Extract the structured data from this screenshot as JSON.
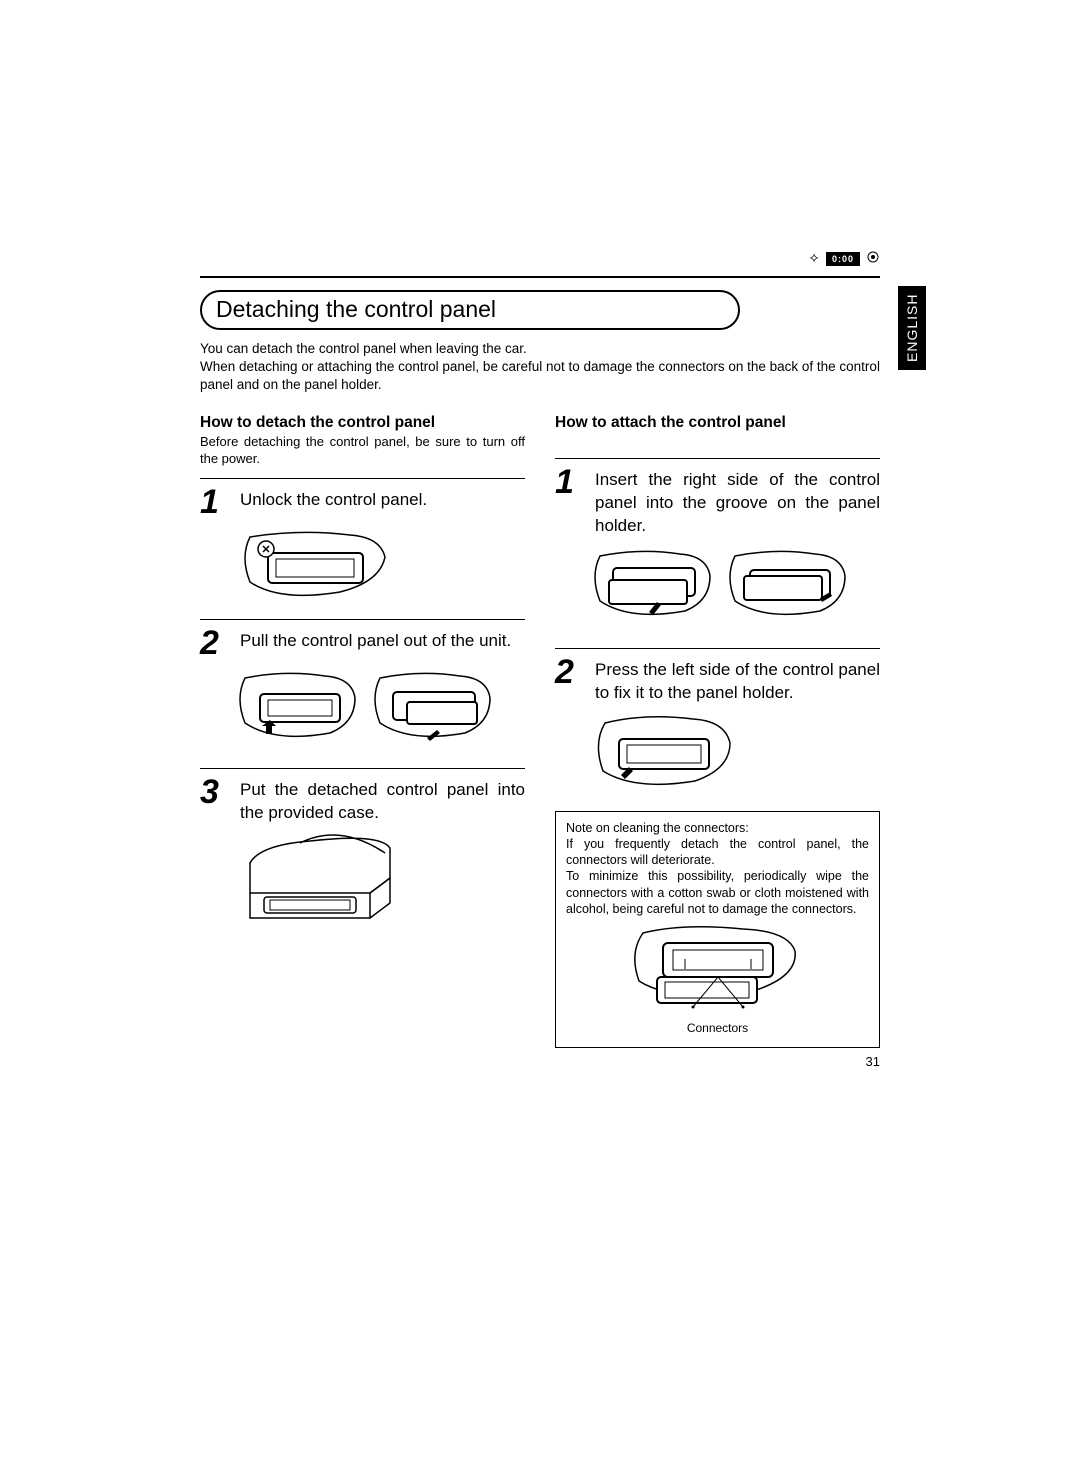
{
  "header": {
    "icon_box_text": "0:00"
  },
  "language_tab": "ENGLISH",
  "section_title": "Detaching the control panel",
  "intro_text": "You can detach the control panel when leaving the car.\nWhen detaching or attaching the control panel, be careful not to damage the connectors on the back of the control panel and on the panel holder.",
  "left": {
    "heading": "How to detach the control panel",
    "pre_note": "Before detaching the control panel, be sure to turn off the power.",
    "steps": [
      {
        "num": "1",
        "text": "Unlock the control panel."
      },
      {
        "num": "2",
        "text": "Pull the control panel out of the unit."
      },
      {
        "num": "3",
        "text": "Put the detached control panel into the provided case."
      }
    ]
  },
  "right": {
    "heading": "How to attach the control panel",
    "steps": [
      {
        "num": "1",
        "text": "Insert the right side of the control panel into the groove on the panel holder."
      },
      {
        "num": "2",
        "text": "Press the left side of the control panel to fix it to the panel holder."
      }
    ]
  },
  "note_box": {
    "title": "Note on cleaning the connectors:",
    "body": "If you frequently detach the control panel, the connectors will deteriorate.\nTo minimize this possibility, periodically wipe the connectors with a cotton swab or cloth moistened with alcohol, being careful not to damage the connectors.",
    "label": "Connectors"
  },
  "page_number": "31",
  "colors": {
    "text": "#000000",
    "bg": "#ffffff"
  }
}
